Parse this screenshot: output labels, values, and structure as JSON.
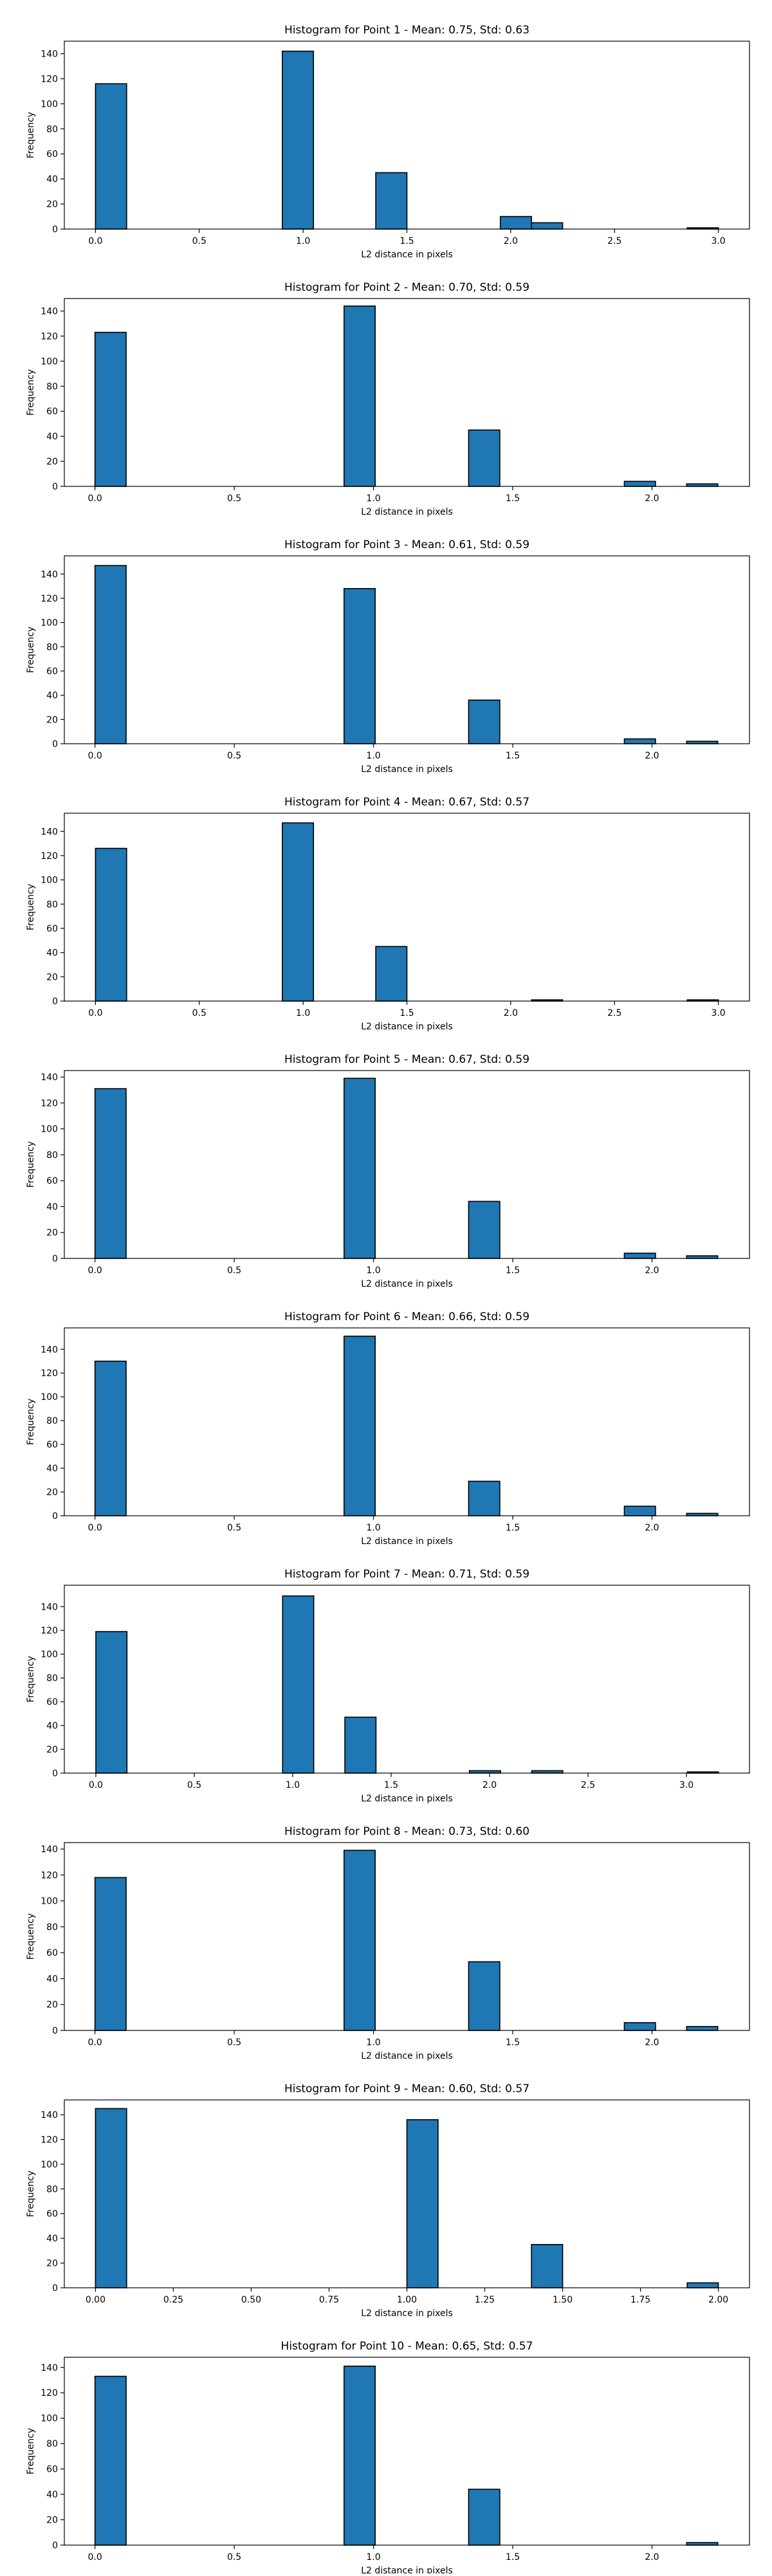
{
  "figure": {
    "bar_color": "#1f77b4",
    "edge_color": "#000000",
    "background": "#ffffff"
  },
  "chart_data": [
    {
      "type": "bar",
      "title": "Histogram for Point 1 - Mean: 0.75, Std: 0.63",
      "xlabel": "L2 distance in pixels",
      "ylabel": "Frequency",
      "xlim": [
        -0.15,
        3.15
      ],
      "ylim": [
        0,
        150
      ],
      "xticks": [
        0.0,
        0.5,
        1.0,
        1.5,
        2.0,
        2.5,
        3.0
      ],
      "xtick_labels": [
        "0.0",
        "0.5",
        "1.0",
        "1.5",
        "2.0",
        "2.5",
        "3.0"
      ],
      "yticks": [
        0,
        20,
        40,
        60,
        80,
        100,
        120,
        140
      ],
      "ytick_labels": [
        "0",
        "20",
        "40",
        "60",
        "80",
        "100",
        "120",
        "140"
      ],
      "bin_width": 0.15,
      "bins": [
        {
          "start": 0.0,
          "value": 116
        },
        {
          "start": 0.9,
          "value": 142
        },
        {
          "start": 1.35,
          "value": 45
        },
        {
          "start": 1.95,
          "value": 10
        },
        {
          "start": 2.1,
          "value": 5
        },
        {
          "start": 2.85,
          "value": 1
        }
      ],
      "grid": false
    },
    {
      "type": "bar",
      "title": "Histogram for Point 2 - Mean: 0.70, Std: 0.59",
      "xlabel": "L2 distance in pixels",
      "ylabel": "Frequency",
      "xlim": [
        -0.11,
        2.35
      ],
      "ylim": [
        0,
        150
      ],
      "xticks": [
        0.0,
        0.5,
        1.0,
        1.5,
        2.0
      ],
      "xtick_labels": [
        "0.0",
        "0.5",
        "1.0",
        "1.5",
        "2.0"
      ],
      "yticks": [
        0,
        20,
        40,
        60,
        80,
        100,
        120,
        140
      ],
      "ytick_labels": [
        "0",
        "20",
        "40",
        "60",
        "80",
        "100",
        "120",
        "140"
      ],
      "bin_width": 0.1118,
      "bins": [
        {
          "start": 0.0,
          "value": 123
        },
        {
          "start": 0.8944,
          "value": 144
        },
        {
          "start": 1.3416,
          "value": 45
        },
        {
          "start": 1.9007,
          "value": 4
        },
        {
          "start": 2.1243,
          "value": 2
        }
      ],
      "grid": false
    },
    {
      "type": "bar",
      "title": "Histogram for Point 3 - Mean: 0.61, Std: 0.59",
      "xlabel": "L2 distance in pixels",
      "ylabel": "Frequency",
      "xlim": [
        -0.11,
        2.35
      ],
      "ylim": [
        0,
        155
      ],
      "xticks": [
        0.0,
        0.5,
        1.0,
        1.5,
        2.0
      ],
      "xtick_labels": [
        "0.0",
        "0.5",
        "1.0",
        "1.5",
        "2.0"
      ],
      "yticks": [
        0,
        20,
        40,
        60,
        80,
        100,
        120,
        140
      ],
      "ytick_labels": [
        "0",
        "20",
        "40",
        "60",
        "80",
        "100",
        "120",
        "140"
      ],
      "bin_width": 0.1118,
      "bins": [
        {
          "start": 0.0,
          "value": 147
        },
        {
          "start": 0.8944,
          "value": 128
        },
        {
          "start": 1.3416,
          "value": 36
        },
        {
          "start": 1.9007,
          "value": 4
        },
        {
          "start": 2.1243,
          "value": 2
        }
      ],
      "grid": false
    },
    {
      "type": "bar",
      "title": "Histogram for Point 4 - Mean: 0.67, Std: 0.57",
      "xlabel": "L2 distance in pixels",
      "ylabel": "Frequency",
      "xlim": [
        -0.15,
        3.15
      ],
      "ylim": [
        0,
        155
      ],
      "xticks": [
        0.0,
        0.5,
        1.0,
        1.5,
        2.0,
        2.5,
        3.0
      ],
      "xtick_labels": [
        "0.0",
        "0.5",
        "1.0",
        "1.5",
        "2.0",
        "2.5",
        "3.0"
      ],
      "yticks": [
        0,
        20,
        40,
        60,
        80,
        100,
        120,
        140
      ],
      "ytick_labels": [
        "0",
        "20",
        "40",
        "60",
        "80",
        "100",
        "120",
        "140"
      ],
      "bin_width": 0.15,
      "bins": [
        {
          "start": 0.0,
          "value": 126
        },
        {
          "start": 0.9,
          "value": 147
        },
        {
          "start": 1.35,
          "value": 45
        },
        {
          "start": 2.1,
          "value": 1
        },
        {
          "start": 2.85,
          "value": 1
        }
      ],
      "grid": false
    },
    {
      "type": "bar",
      "title": "Histogram for Point 5 - Mean: 0.67, Std: 0.59",
      "xlabel": "L2 distance in pixels",
      "ylabel": "Frequency",
      "xlim": [
        -0.11,
        2.35
      ],
      "ylim": [
        0,
        145
      ],
      "xticks": [
        0.0,
        0.5,
        1.0,
        1.5,
        2.0
      ],
      "xtick_labels": [
        "0.0",
        "0.5",
        "1.0",
        "1.5",
        "2.0"
      ],
      "yticks": [
        0,
        20,
        40,
        60,
        80,
        100,
        120,
        140
      ],
      "ytick_labels": [
        "0",
        "20",
        "40",
        "60",
        "80",
        "100",
        "120",
        "140"
      ],
      "bin_width": 0.1118,
      "bins": [
        {
          "start": 0.0,
          "value": 131
        },
        {
          "start": 0.8944,
          "value": 139
        },
        {
          "start": 1.3416,
          "value": 44
        },
        {
          "start": 1.9007,
          "value": 4
        },
        {
          "start": 2.1243,
          "value": 2
        }
      ],
      "grid": false
    },
    {
      "type": "bar",
      "title": "Histogram for Point 6 - Mean: 0.66, Std: 0.59",
      "xlabel": "L2 distance in pixels",
      "ylabel": "Frequency",
      "xlim": [
        -0.11,
        2.35
      ],
      "ylim": [
        0,
        158
      ],
      "xticks": [
        0.0,
        0.5,
        1.0,
        1.5,
        2.0
      ],
      "xtick_labels": [
        "0.0",
        "0.5",
        "1.0",
        "1.5",
        "2.0"
      ],
      "yticks": [
        0,
        20,
        40,
        60,
        80,
        100,
        120,
        140
      ],
      "ytick_labels": [
        "0",
        "20",
        "40",
        "60",
        "80",
        "100",
        "120",
        "140"
      ],
      "bin_width": 0.1118,
      "bins": [
        {
          "start": 0.0,
          "value": 130
        },
        {
          "start": 0.8944,
          "value": 151
        },
        {
          "start": 1.3416,
          "value": 29
        },
        {
          "start": 1.9007,
          "value": 8
        },
        {
          "start": 2.1243,
          "value": 2
        }
      ],
      "grid": false
    },
    {
      "type": "bar",
      "title": "Histogram for Point 7 - Mean: 0.71, Std: 0.59",
      "xlabel": "L2 distance in pixels",
      "ylabel": "Frequency",
      "xlim": [
        -0.16,
        3.32
      ],
      "ylim": [
        0,
        158
      ],
      "xticks": [
        0.0,
        0.5,
        1.0,
        1.5,
        2.0,
        2.5,
        3.0
      ],
      "xtick_labels": [
        "0.0",
        "0.5",
        "1.0",
        "1.5",
        "2.0",
        "2.5",
        "3.0"
      ],
      "yticks": [
        0,
        20,
        40,
        60,
        80,
        100,
        120,
        140
      ],
      "ytick_labels": [
        "0",
        "20",
        "40",
        "60",
        "80",
        "100",
        "120",
        "140"
      ],
      "bin_width": 0.1581,
      "bins": [
        {
          "start": 0.0,
          "value": 119
        },
        {
          "start": 0.9487,
          "value": 149
        },
        {
          "start": 1.2649,
          "value": 47
        },
        {
          "start": 1.8974,
          "value": 2
        },
        {
          "start": 2.2136,
          "value": 2
        },
        {
          "start": 3.0042,
          "value": 1
        }
      ],
      "grid": false
    },
    {
      "type": "bar",
      "title": "Histogram for Point 8 - Mean: 0.73, Std: 0.60",
      "xlabel": "L2 distance in pixels",
      "ylabel": "Frequency",
      "xlim": [
        -0.11,
        2.35
      ],
      "ylim": [
        0,
        145
      ],
      "xticks": [
        0.0,
        0.5,
        1.0,
        1.5,
        2.0
      ],
      "xtick_labels": [
        "0.0",
        "0.5",
        "1.0",
        "1.5",
        "2.0"
      ],
      "yticks": [
        0,
        20,
        40,
        60,
        80,
        100,
        120,
        140
      ],
      "ytick_labels": [
        "0",
        "20",
        "40",
        "60",
        "80",
        "100",
        "120",
        "140"
      ],
      "bin_width": 0.1118,
      "bins": [
        {
          "start": 0.0,
          "value": 118
        },
        {
          "start": 0.8944,
          "value": 139
        },
        {
          "start": 1.3416,
          "value": 53
        },
        {
          "start": 1.9007,
          "value": 6
        },
        {
          "start": 2.1243,
          "value": 3
        }
      ],
      "grid": false
    },
    {
      "type": "bar",
      "title": "Histogram for Point 9 - Mean: 0.60, Std: 0.57",
      "xlabel": "L2 distance in pixels",
      "ylabel": "Frequency",
      "xlim": [
        -0.1,
        2.1
      ],
      "ylim": [
        0,
        152
      ],
      "xticks": [
        0.0,
        0.25,
        0.5,
        0.75,
        1.0,
        1.25,
        1.5,
        1.75,
        2.0
      ],
      "xtick_labels": [
        "0.00",
        "0.25",
        "0.50",
        "0.75",
        "1.00",
        "1.25",
        "1.50",
        "1.75",
        "2.00"
      ],
      "yticks": [
        0,
        20,
        40,
        60,
        80,
        100,
        120,
        140
      ],
      "ytick_labels": [
        "0",
        "20",
        "40",
        "60",
        "80",
        "100",
        "120",
        "140"
      ],
      "bin_width": 0.1,
      "bins": [
        {
          "start": 0.0,
          "value": 145
        },
        {
          "start": 1.0,
          "value": 136
        },
        {
          "start": 1.4,
          "value": 35
        },
        {
          "start": 1.9,
          "value": 4
        }
      ],
      "grid": false
    },
    {
      "type": "bar",
      "title": "Histogram for Point 10 - Mean: 0.65, Std: 0.57",
      "xlabel": "L2 distance in pixels",
      "ylabel": "Frequency",
      "xlim": [
        -0.11,
        2.35
      ],
      "ylim": [
        0,
        148
      ],
      "xticks": [
        0.0,
        0.5,
        1.0,
        1.5,
        2.0
      ],
      "xtick_labels": [
        "0.0",
        "0.5",
        "1.0",
        "1.5",
        "2.0"
      ],
      "yticks": [
        0,
        20,
        40,
        60,
        80,
        100,
        120,
        140
      ],
      "ytick_labels": [
        "0",
        "20",
        "40",
        "60",
        "80",
        "100",
        "120",
        "140"
      ],
      "bin_width": 0.1118,
      "bins": [
        {
          "start": 0.0,
          "value": 133
        },
        {
          "start": 0.8944,
          "value": 141
        },
        {
          "start": 1.3416,
          "value": 44
        },
        {
          "start": 2.1243,
          "value": 2
        }
      ],
      "grid": false
    }
  ]
}
